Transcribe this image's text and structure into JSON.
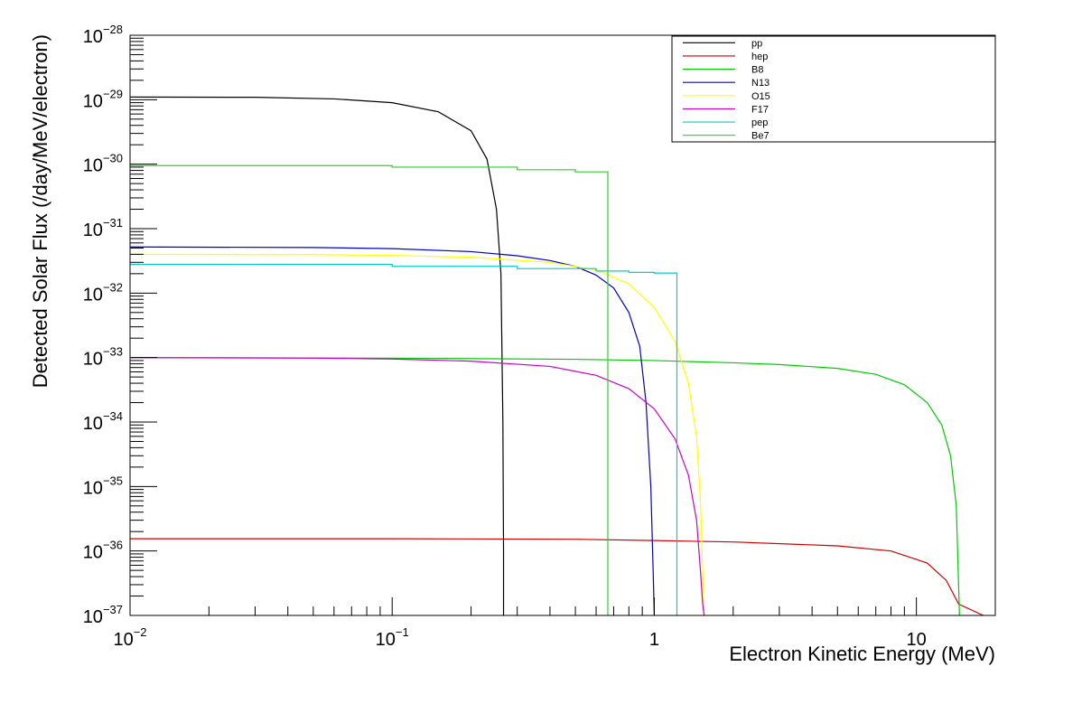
{
  "chart_data": {
    "type": "line",
    "xlabel": "Electron Kinetic Energy (MeV)",
    "ylabel": "Detected Solar Flux (/day/MeV/electron)",
    "x_scale": "log",
    "y_scale": "log",
    "xlim": [
      0.01,
      20
    ],
    "ylim": [
      1e-37,
      1e-28
    ],
    "legend_position": "top-right",
    "x_major_ticks": [
      {
        "value": 0.01,
        "base": "10",
        "exp": "−2"
      },
      {
        "value": 0.1,
        "base": "10",
        "exp": "−1"
      },
      {
        "value": 1,
        "base": "1",
        "exp": ""
      },
      {
        "value": 10,
        "base": "10",
        "exp": ""
      }
    ],
    "y_major_ticks": [
      {
        "value": 1e-28,
        "base": "10",
        "exp": "−28"
      },
      {
        "value": 1e-29,
        "base": "10",
        "exp": "−29"
      },
      {
        "value": 1e-30,
        "base": "10",
        "exp": "−30"
      },
      {
        "value": 1e-31,
        "base": "10",
        "exp": "−31"
      },
      {
        "value": 1e-32,
        "base": "10",
        "exp": "−32"
      },
      {
        "value": 1e-33,
        "base": "10",
        "exp": "−33"
      },
      {
        "value": 1e-34,
        "base": "10",
        "exp": "−34"
      },
      {
        "value": 1e-35,
        "base": "10",
        "exp": "−35"
      },
      {
        "value": 1e-36,
        "base": "10",
        "exp": "−36"
      },
      {
        "value": 1e-37,
        "base": "10",
        "exp": "−37"
      }
    ],
    "series": [
      {
        "name": "pp",
        "color": "#000000",
        "step": false,
        "x": [
          0.01,
          0.03,
          0.06,
          0.1,
          0.15,
          0.2,
          0.23,
          0.25,
          0.26,
          0.2645,
          0.266,
          0.266
        ],
        "y": [
          1.1e-29,
          1.09e-29,
          1.03e-29,
          9e-30,
          6.5e-30,
          3.3e-30,
          1.2e-30,
          2e-31,
          2e-32,
          1e-34,
          1e-36,
          1e-37
        ]
      },
      {
        "name": "hep",
        "color": "#cc0000",
        "step": false,
        "x": [
          0.01,
          0.1,
          0.5,
          1,
          2,
          5,
          8,
          11,
          13,
          14.5,
          18.0
        ],
        "y": [
          1.55e-36,
          1.55e-36,
          1.52e-36,
          1.45e-36,
          1.38e-36,
          1.2e-36,
          1e-36,
          6.5e-37,
          3.5e-37,
          1.5e-37,
          1e-37
        ]
      },
      {
        "name": "B8",
        "color": "#00cc00",
        "step": false,
        "x": [
          0.01,
          0.1,
          0.5,
          1,
          2,
          3,
          5,
          7,
          9,
          11,
          12.5,
          13.5,
          14.2,
          14.6
        ],
        "y": [
          1e-33,
          9.8e-34,
          9.4e-34,
          9e-34,
          8.3e-34,
          7.8e-34,
          6.8e-34,
          5.5e-34,
          3.8e-34,
          2e-34,
          9e-35,
          3e-35,
          5e-36,
          1e-37
        ]
      },
      {
        "name": "N13",
        "color": "#0000cc",
        "step": false,
        "x": [
          0.01,
          0.05,
          0.1,
          0.2,
          0.3,
          0.4,
          0.5,
          0.6,
          0.7,
          0.8,
          0.88,
          0.93,
          0.97,
          0.99,
          1.0
        ],
        "y": [
          5.2e-32,
          5.1e-32,
          4.9e-32,
          4.4e-32,
          3.8e-32,
          3.2e-32,
          2.6e-32,
          1.9e-32,
          1.2e-32,
          5e-33,
          1.5e-33,
          2e-34,
          1e-35,
          5e-37,
          1e-37
        ]
      },
      {
        "name": "O15",
        "color": "#ffff00",
        "step": false,
        "x": [
          0.01,
          0.05,
          0.1,
          0.2,
          0.4,
          0.6,
          0.8,
          1.0,
          1.2,
          1.35,
          1.45,
          1.5,
          1.53,
          1.55
        ],
        "y": [
          4e-32,
          3.95e-32,
          3.85e-32,
          3.6e-32,
          3e-32,
          2.3e-32,
          1.4e-32,
          6e-33,
          1.8e-33,
          4e-34,
          6e-35,
          6e-36,
          5e-37,
          1e-37
        ]
      },
      {
        "name": "F17",
        "color": "#cc00cc",
        "step": false,
        "x": [
          0.01,
          0.05,
          0.1,
          0.2,
          0.4,
          0.6,
          0.8,
          1.0,
          1.2,
          1.35,
          1.45,
          1.5,
          1.53,
          1.55
        ],
        "y": [
          1e-33,
          9.8e-34,
          9.5e-34,
          8.8e-34,
          7.3e-34,
          5.3e-34,
          3.3e-34,
          1.6e-34,
          5.5e-35,
          1.5e-35,
          3e-36,
          5e-37,
          1.5e-37,
          1e-37
        ]
      },
      {
        "name": "pep",
        "color": "#00cccc",
        "step": true,
        "x": [
          0.01,
          0.1,
          0.3,
          0.6,
          0.8,
          1.0,
          1.22,
          1.22
        ],
        "y": [
          2.8e-32,
          2.6e-32,
          2.4e-32,
          2.2e-32,
          2.1e-32,
          2.05e-32,
          2e-32,
          1e-37
        ]
      },
      {
        "name": "Be7",
        "color": "#33cc33",
        "step": true,
        "x": [
          0.01,
          0.1,
          0.3,
          0.5,
          0.665,
          0.665
        ],
        "y": [
          9.5e-31,
          9e-31,
          8.2e-31,
          7.6e-31,
          7.2e-31,
          1e-37
        ]
      }
    ]
  }
}
